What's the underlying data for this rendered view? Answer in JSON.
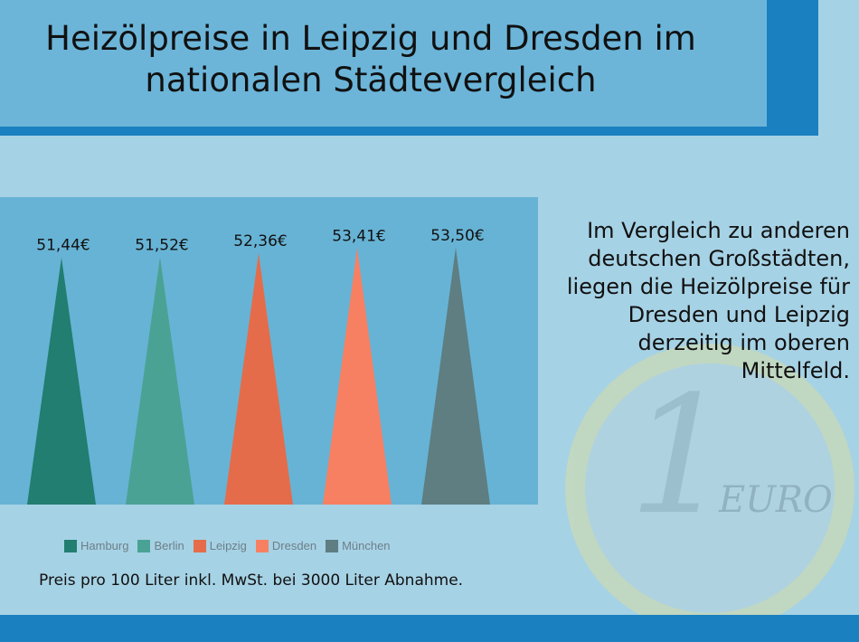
{
  "title": "Heizölpreise in Leipzig und Dresden im nationalen Städtevergleich",
  "side_text": "Im Vergleich zu anderen deutschen Großstädten, liegen die Heizölpreise für Dresden und Leipzig derzeitig im oberen Mittelfeld.",
  "note": "Preis pro 100 Liter inkl. MwSt. bei 3000 Liter Abnahme.",
  "coin": {
    "digit": "1",
    "text": "EURO"
  },
  "colors": {
    "header": "#6cb5d9",
    "accent": "#1a80c0",
    "background": "#a6d2e5",
    "chart_bg": "#67b3d5"
  },
  "chart_data": {
    "type": "bar",
    "mark_shape": "triangle",
    "categories": [
      "Hamburg",
      "Berlin",
      "Leipzig",
      "Dresden",
      "München"
    ],
    "values": [
      51.44,
      51.52,
      52.36,
      53.41,
      53.5
    ],
    "labels": [
      "51,44€",
      "51,52€",
      "52,36€",
      "53,41€",
      "53,50€"
    ],
    "colors": [
      "#217e70",
      "#4aa294",
      "#e56c4a",
      "#f88062",
      "#5e7e82"
    ],
    "ylim": [
      0,
      64
    ],
    "grid": false,
    "legend": "bottom"
  }
}
